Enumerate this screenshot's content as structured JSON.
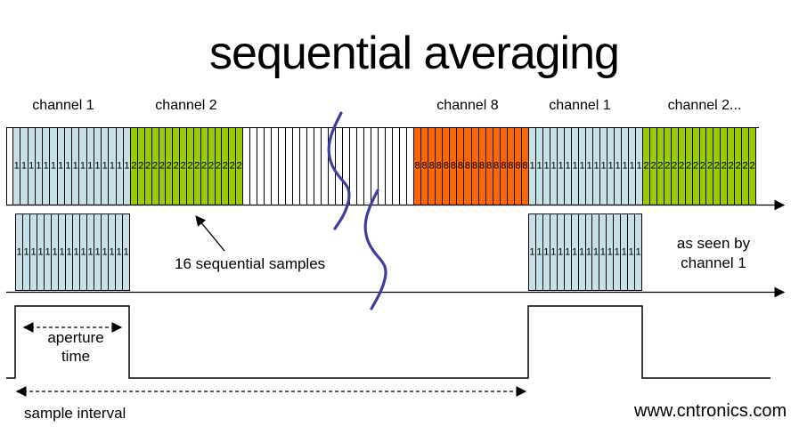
{
  "title": "sequential averaging",
  "colors": {
    "channel1_fill": "#c5e0e6",
    "channel2_fill": "#99cc00",
    "channel8_fill": "#ff6600",
    "white_fill": "#ffffff",
    "squiggle_stroke": "#3a3f9e",
    "line_stroke": "#000000",
    "watermark_color": "#b4dfb0"
  },
  "top_bar": {
    "labels": [
      {
        "text": "channel 1"
      },
      {
        "text": "channel 2"
      },
      {
        "text": "channel 8"
      },
      {
        "text": "channel 1"
      },
      {
        "text": "channel 2..."
      }
    ],
    "segments": [
      {
        "name": "lead-white",
        "color": "white_fill",
        "stripes": 1,
        "digit": ""
      },
      {
        "name": "channel-1",
        "color": "channel1_fill",
        "stripes": 16,
        "digit": "1"
      },
      {
        "name": "channel-2",
        "color": "channel2_fill",
        "stripes": 16,
        "digit": "2"
      },
      {
        "name": "gap-white",
        "color": "white_fill",
        "stripes": 24,
        "digit": ""
      },
      {
        "name": "channel-8",
        "color": "channel8_fill",
        "stripes": 16,
        "digit": "8"
      },
      {
        "name": "channel-1-repeat",
        "color": "channel1_fill",
        "stripes": 16,
        "digit": "1"
      },
      {
        "name": "channel-2-repeat",
        "color": "channel2_fill",
        "stripes": 16,
        "digit": "2"
      },
      {
        "name": "tail-white",
        "color": "white_fill",
        "stripes": 1,
        "digit": ""
      }
    ]
  },
  "row2": {
    "blocks": [
      {
        "name": "channel-1-burst-a",
        "stripes": 16,
        "digit": "1"
      },
      {
        "name": "channel-1-burst-b",
        "stripes": 16,
        "digit": "1"
      }
    ],
    "note": "16 sequential samples",
    "side_note_line1": "as seen by",
    "side_note_line2": "channel 1"
  },
  "row3": {
    "aperture_line1": "aperture",
    "aperture_line2": "time",
    "sample_interval": "sample interval"
  },
  "watermark": "www.cntronics.com"
}
